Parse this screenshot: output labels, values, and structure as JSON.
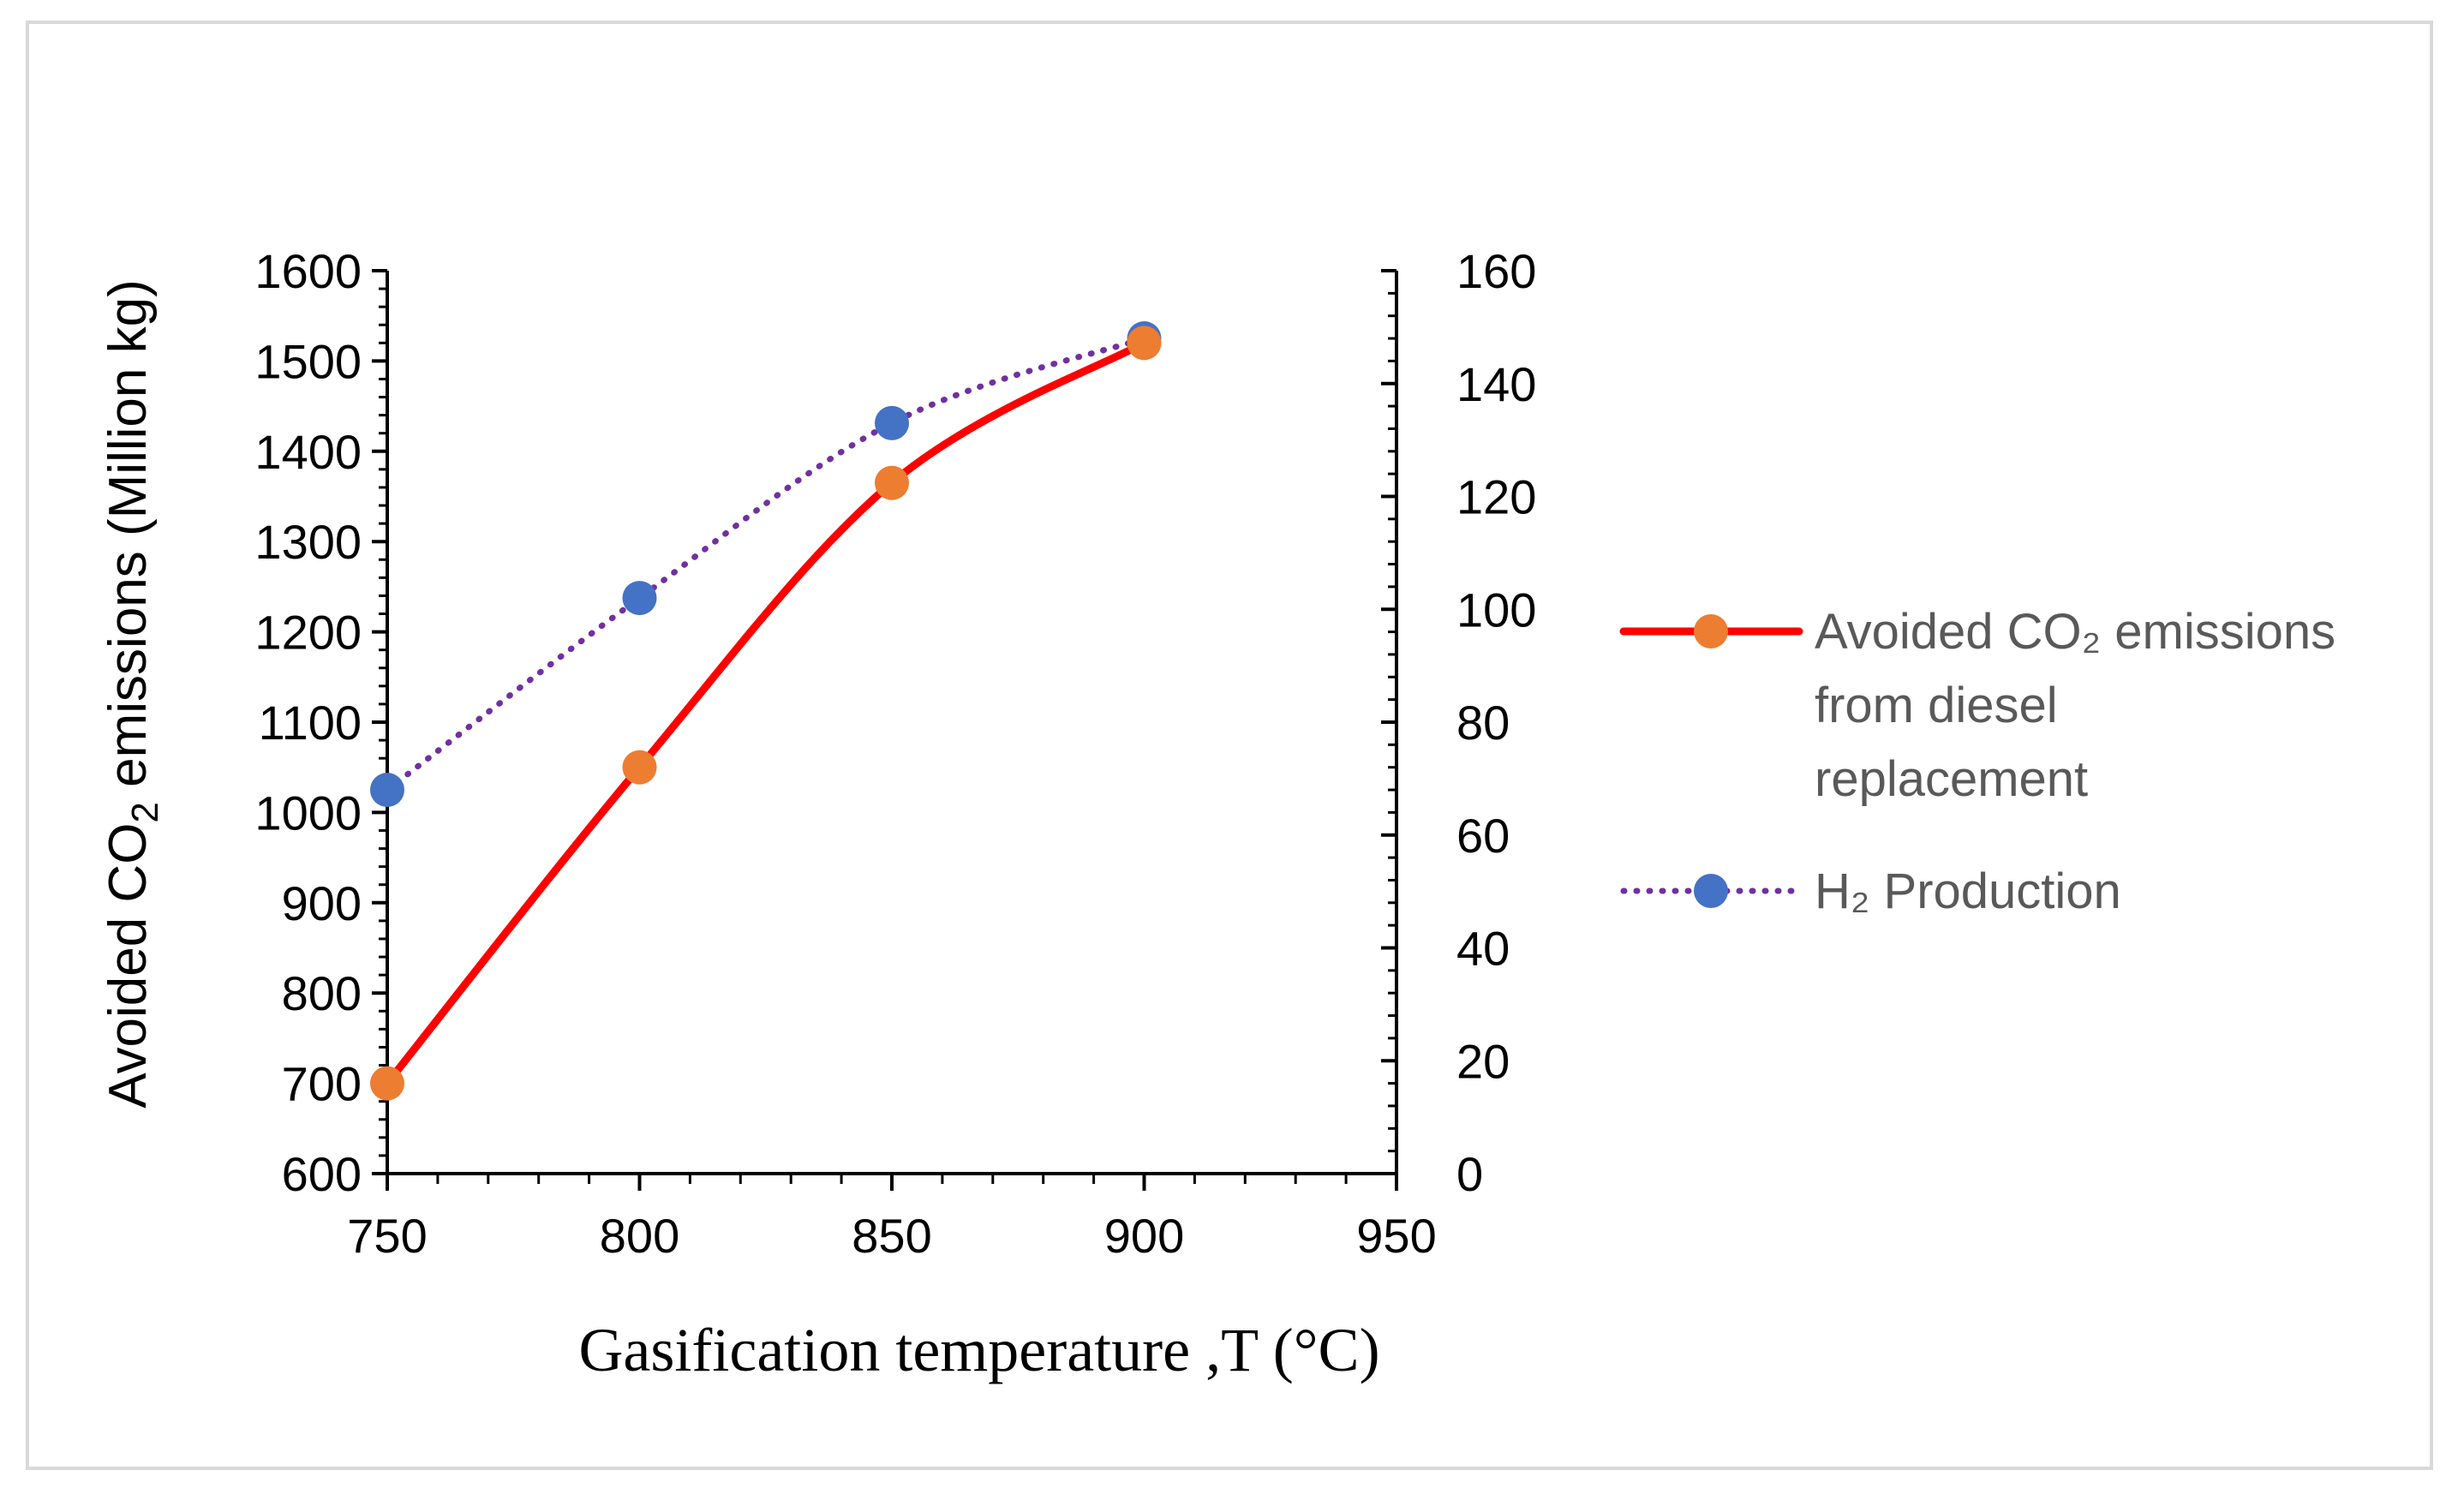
{
  "chart_data": {
    "type": "line",
    "title": "",
    "xlabel": "Gasification temperature ,T (°C)",
    "ylabel": "Avoided CO2 emissions (Million kg)",
    "ylabel_parts": {
      "before": "Avoided CO",
      "sub": "2",
      "after": " emissions (Million kg)"
    },
    "y2label": "",
    "xlim": [
      750,
      950
    ],
    "x_ticks": [
      "750",
      "800",
      "850",
      "900",
      "950"
    ],
    "ylim": [
      600,
      1600
    ],
    "y_ticks": [
      "600",
      "700",
      "800",
      "900",
      "1000",
      "1100",
      "1200",
      "1300",
      "1400",
      "1500",
      "1600"
    ],
    "y2lim": [
      0,
      160
    ],
    "y2_ticks": [
      "0",
      "20",
      "40",
      "60",
      "80",
      "100",
      "120",
      "140",
      "160"
    ],
    "series": [
      {
        "name": "Avoided CO₂ emissions from diesel replacement",
        "legend_lines": [
          "Avoided CO₂ emissions",
          "from diesel",
          "replacement"
        ],
        "axis": "left",
        "x": [
          750,
          800,
          850,
          900
        ],
        "values": [
          700,
          1050,
          1365,
          1520
        ],
        "line_color": "#ff0000",
        "line_style": "solid",
        "marker_color": "#ed7d31"
      },
      {
        "name": "H₂ Production",
        "legend_lines": [
          "H₂ Production"
        ],
        "axis": "right",
        "x": [
          750,
          800,
          850,
          900
        ],
        "values": [
          68,
          102,
          133,
          148
        ],
        "line_color": "#7030a0",
        "line_style": "dotted",
        "marker_color": "#4472c4"
      }
    ],
    "legend_position": "right"
  }
}
